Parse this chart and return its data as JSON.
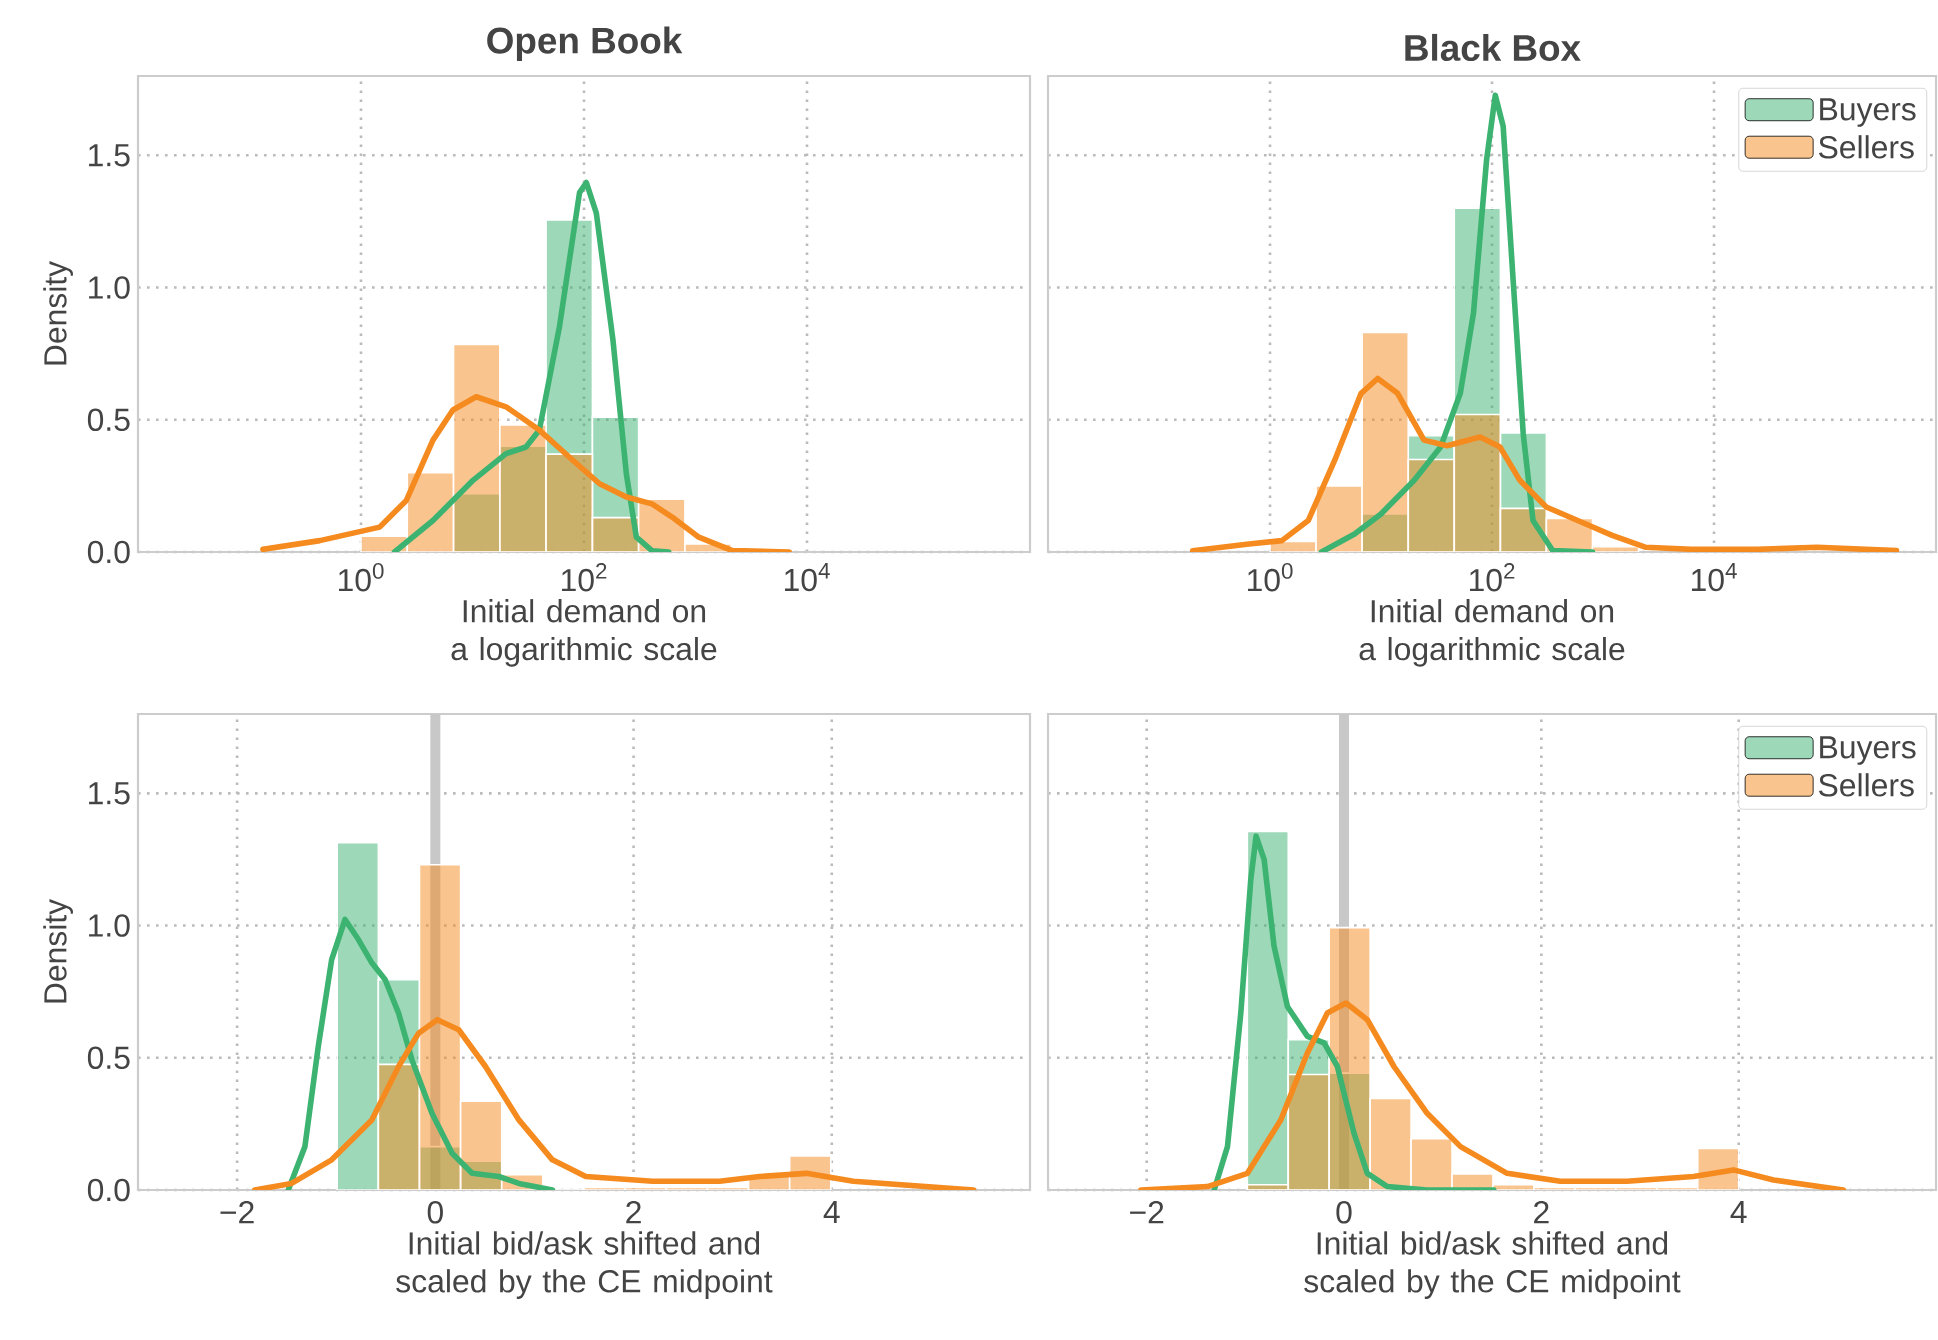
{
  "chart_data": [
    {
      "type": "histogram",
      "title": "Open Book",
      "xlabel": "Initial demand on a logarithmic scale",
      "ylabel": "Density",
      "log": "x",
      "grid": true,
      "xlim": [
        0.01,
        1000000
      ],
      "ylim": [
        0,
        1.8
      ],
      "xticks": [
        {
          "value": 1,
          "label": "10$^{0}$"
        },
        {
          "value": 100,
          "label": "10$^{2}$"
        },
        {
          "value": 10000,
          "label": "10$^{4}$"
        }
      ],
      "yticks": [
        {
          "value": 0,
          "label": "0.0"
        },
        {
          "value": 0.5,
          "label": "0.5"
        },
        {
          "value": 1,
          "label": "1.0"
        },
        {
          "value": 1.5,
          "label": "1.5"
        }
      ],
      "series": [
        {
          "color": "#3cb371",
          "bins": [
            6.76,
            17.6,
            45.7,
            119,
            309
          ],
          "values": [
            0.22,
            0.4,
            1.256,
            0.51
          ]
        },
        {
          "color": "#f58a1f",
          "bins": [
            1,
            2.6,
            6.76,
            17.6,
            45.7,
            119,
            309,
            804,
            2090
          ],
          "values": [
            0.06,
            0.3,
            0.785,
            0.48,
            0.37,
            0.13,
            0.2,
            0.03
          ]
        },
        {
          "type": "line",
          "color": "#3cb371",
          "x": [
            2.0,
            4.42,
            10.1,
            20.0,
            30.2,
            39.8,
            60.3,
            91.2,
            105,
            129,
            182,
            240,
            295,
            407,
            575
          ],
          "values": [
            0,
            0.119,
            0.271,
            0.372,
            0.397,
            0.461,
            0.853,
            1.359,
            1.397,
            1.281,
            0.8,
            0.294,
            0.056,
            0.005,
            0
          ]
        },
        {
          "type": "line",
          "color": "#f58a1f",
          "x": [
            0.132,
            0.427,
            1.47,
            2.55,
            4.42,
            6.67,
            10.8,
            20.0,
            39.8,
            79.4,
            138,
            240,
            407,
            617,
            1070,
            2140,
            6920
          ],
          "values": [
            0.01,
            0.043,
            0.094,
            0.195,
            0.423,
            0.537,
            0.587,
            0.549,
            0.461,
            0.347,
            0.258,
            0.208,
            0.182,
            0.132,
            0.056,
            0.005,
            0
          ]
        }
      ]
    },
    {
      "type": "histogram",
      "title": "Black Box",
      "xlabel": "Initial demand on a logarithmic scale",
      "log": "x",
      "grid": true,
      "legend": "top right",
      "tick_labels": "x",
      "xlim": [
        0.01,
        1000000
      ],
      "ylim": [
        0,
        1.8
      ],
      "xticks": [
        {
          "value": 1,
          "label": "10$^{0}$"
        },
        {
          "value": 100,
          "label": "10$^{2}$"
        },
        {
          "value": 10000,
          "label": "10$^{4}$"
        }
      ],
      "yticks": [
        {
          "value": 0,
          "label": null
        },
        {
          "value": 0.5,
          "label": null
        },
        {
          "value": 1,
          "label": null
        },
        {
          "value": 1.5,
          "label": null
        }
      ],
      "series": [
        {
          "name": "Buyers",
          "color": "#3cb371",
          "bins": [
            6.76,
            17.6,
            45.7,
            119,
            309
          ],
          "values": [
            0.144,
            0.44,
            1.3,
            0.45
          ]
        },
        {
          "name": "Sellers",
          "color": "#f58a1f",
          "bins": [
            1,
            2.6,
            6.76,
            17.6,
            45.7,
            119,
            309,
            804,
            2090
          ],
          "values": [
            0.04,
            0.25,
            0.83,
            0.35,
            0.52,
            0.165,
            0.127,
            0.02
          ]
        },
        {
          "type": "line",
          "color": "#3cb371",
          "x": [
            2.91,
            5.78,
            10.0,
            19.9,
            34.4,
            51.8,
            68.1,
            89.5,
            107,
            126,
            155,
            191,
            234,
            353,
            804
          ],
          "values": [
            0,
            0.068,
            0.144,
            0.271,
            0.397,
            0.6,
            0.904,
            1.486,
            1.727,
            1.61,
            1.028,
            0.448,
            0.119,
            0.005,
            0
          ]
        },
        {
          "type": "line",
          "color": "#f58a1f",
          "x": [
            0.201,
            0.646,
            1.28,
            2.21,
            3.83,
            6.62,
            9.33,
            14.1,
            24.4,
            39.4,
            78.2,
            118,
            178,
            308,
            700,
            1210,
            2400,
            6280,
            24700,
            84900,
            440000
          ],
          "values": [
            0.005,
            0.03,
            0.043,
            0.119,
            0.347,
            0.6,
            0.656,
            0.6,
            0.423,
            0.402,
            0.435,
            0.397,
            0.271,
            0.17,
            0.106,
            0.063,
            0.018,
            0.01,
            0.01,
            0.018,
            0.005
          ]
        }
      ]
    },
    {
      "type": "histogram",
      "xlabel": "Initial bid/ask shifted and scaled by the CE midpoint",
      "ylabel": "Density",
      "grid": true,
      "xlim": [
        -3,
        6
      ],
      "ylim": [
        0,
        1.8
      ],
      "xticks": [
        {
          "value": -2,
          "label": "−2"
        },
        {
          "value": 0,
          "label": "0"
        },
        {
          "value": 2,
          "label": "2"
        },
        {
          "value": 4,
          "label": "4"
        }
      ],
      "yticks": [
        {
          "value": 0,
          "label": "0.0"
        },
        {
          "value": 0.5,
          "label": "0.5"
        },
        {
          "value": 1,
          "label": "1.0"
        },
        {
          "value": 1.5,
          "label": "1.5"
        }
      ],
      "ref_lines": [
        {
          "axis": "x",
          "value": 0,
          "color": "#c8c8c8"
        }
      ],
      "series": [
        {
          "color": "#3cb371",
          "bins": [
            -0.99,
            -0.575,
            -0.16,
            0.255,
            0.67
          ],
          "values": [
            1.313,
            0.795,
            0.164,
            0.109
          ]
        },
        {
          "color": "#f58a1f",
          "bins": [
            -0.575,
            -0.16,
            0.255,
            0.67,
            1.085,
            1.5,
            1.915,
            2.33,
            2.745,
            3.16,
            3.575,
            3.99
          ],
          "values": [
            0.475,
            1.23,
            0.336,
            0.058,
            0,
            0.01,
            0.01,
            0.01,
            0.01,
            0.058,
            0.129
          ]
        },
        {
          "type": "line",
          "color": "#3cb371",
          "x": [
            -1.484,
            -1.316,
            -1.181,
            -1.046,
            -0.911,
            -0.776,
            -0.641,
            -0.506,
            -0.371,
            -0.236,
            -0.034,
            0.169,
            0.371,
            0.641,
            0.843,
            1.181
          ],
          "values": [
            0,
            0.164,
            0.543,
            0.871,
            1.023,
            0.947,
            0.859,
            0.795,
            0.669,
            0.492,
            0.29,
            0.139,
            0.063,
            0.051,
            0.025,
            0
          ]
        },
        {
          "type": "line",
          "color": "#f58a1f",
          "x": [
            -1.822,
            -1.451,
            -1.046,
            -0.641,
            -0.371,
            -0.169,
            0.02,
            0.236,
            0.506,
            0.843,
            1.181,
            1.518,
            2.193,
            2.868,
            3.273,
            3.745,
            4.217,
            5.432
          ],
          "values": [
            0,
            0.025,
            0.114,
            0.265,
            0.467,
            0.593,
            0.644,
            0.606,
            0.467,
            0.265,
            0.114,
            0.051,
            0.033,
            0.033,
            0.051,
            0.063,
            0.033,
            0
          ]
        }
      ]
    },
    {
      "type": "histogram",
      "xlabel": "Initial bid/ask shifted and scaled by the CE midpoint",
      "grid": true,
      "legend": "top right",
      "tick_labels": "x",
      "xlim": [
        -3,
        6
      ],
      "ylim": [
        0,
        1.8
      ],
      "xticks": [
        {
          "value": -2,
          "label": "−2"
        },
        {
          "value": 0,
          "label": "0"
        },
        {
          "value": 2,
          "label": "2"
        },
        {
          "value": 4,
          "label": "4"
        }
      ],
      "yticks": [
        {
          "value": 0,
          "label": null
        },
        {
          "value": 0.5,
          "label": null
        },
        {
          "value": 1,
          "label": null
        },
        {
          "value": 1.5,
          "label": null
        }
      ],
      "ref_lines": [
        {
          "axis": "x",
          "value": 0,
          "color": "#c8c8c8"
        }
      ],
      "series": [
        {
          "name": "Buyers",
          "color": "#3cb371",
          "bins": [
            -0.98,
            -0.565,
            -0.15,
            0.265
          ],
          "values": [
            1.356,
            0.568,
            0.442
          ]
        },
        {
          "name": "Sellers",
          "color": "#f58a1f",
          "bins": [
            -0.98,
            -0.565,
            -0.15,
            0.265,
            0.68,
            1.095,
            1.51,
            1.925,
            2.34,
            2.755,
            3.17,
            3.585,
            4.0
          ],
          "values": [
            0.02,
            0.437,
            0.992,
            0.346,
            0.194,
            0.061,
            0.02,
            0.01,
            0.01,
            0.01,
            0.01,
            0.157
          ]
        },
        {
          "type": "line",
          "color": "#3cb371",
          "x": [
            -1.316,
            -1.181,
            -1.046,
            -0.945,
            -0.891,
            -0.81,
            -0.709,
            -0.574,
            -0.371,
            -0.202,
            -0.067,
            0.101,
            0.236,
            0.439,
            0.843,
            1.518
          ],
          "values": [
            0,
            0.164,
            0.669,
            1.174,
            1.338,
            1.25,
            0.922,
            0.694,
            0.581,
            0.556,
            0.467,
            0.215,
            0.063,
            0.013,
            0,
            0
          ]
        },
        {
          "type": "line",
          "color": "#f58a1f",
          "x": [
            -2.058,
            -1.383,
            -0.979,
            -0.641,
            -0.371,
            -0.169,
            0.02,
            0.236,
            0.506,
            0.843,
            1.181,
            1.653,
            2.193,
            2.868,
            3.543,
            3.948,
            4.353,
            5.061
          ],
          "values": [
            0,
            0.013,
            0.063,
            0.265,
            0.518,
            0.669,
            0.707,
            0.644,
            0.467,
            0.29,
            0.164,
            0.063,
            0.033,
            0.033,
            0.051,
            0.076,
            0.038,
            0
          ]
        }
      ]
    }
  ]
}
